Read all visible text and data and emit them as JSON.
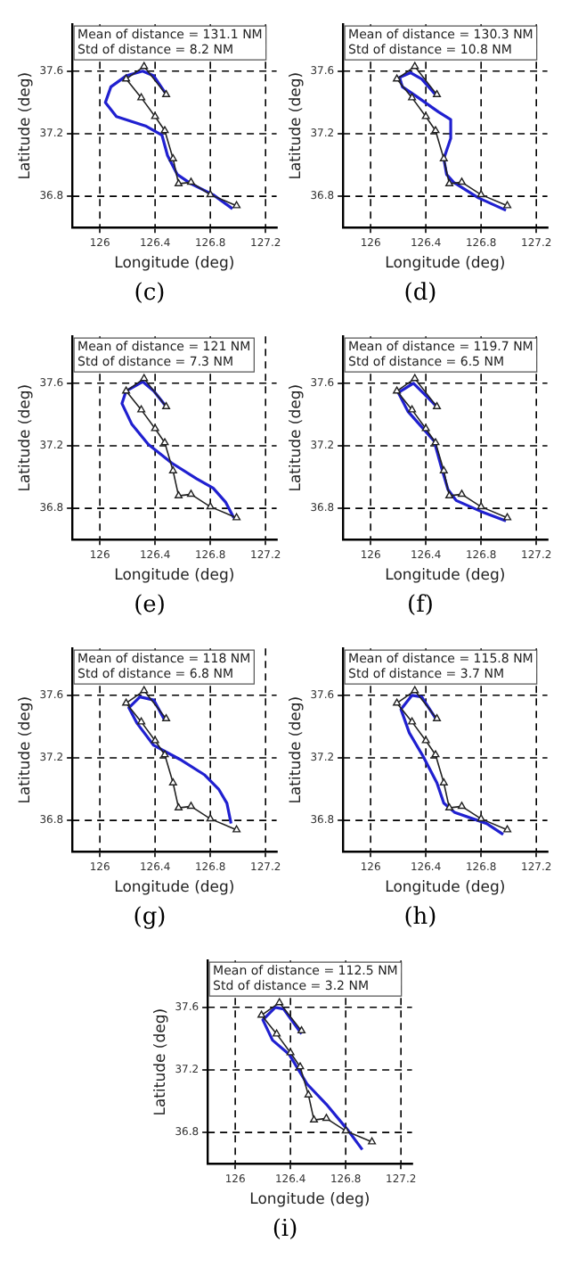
{
  "chart_data": [
    {
      "type": "line",
      "xlabel": "Longitude (deg)",
      "ylabel": "Latitude (deg)",
      "xlim": [
        125.8,
        127.28
      ],
      "ylim": [
        36.6,
        37.9
      ],
      "xticks": [
        126,
        126.4,
        126.8,
        127.2
      ],
      "yticks": [
        36.8,
        37.2,
        37.6
      ],
      "grid": true,
      "annotations": [
        "Mean of distance = 131.1 NM",
        "Std of distance = 8.2 NM",
        "(c)"
      ],
      "series": [
        {
          "color": "#222222",
          "marker": "triangle",
          "x": [
            126.99,
            126.8,
            126.66,
            126.57,
            126.53,
            126.47,
            126.4,
            126.3,
            126.19,
            126.32,
            126.48
          ],
          "values": [
            36.74,
            36.81,
            36.89,
            36.88,
            37.04,
            37.22,
            37.31,
            37.43,
            37.55,
            37.63,
            37.45
          ]
        },
        {
          "color": "#2020d0",
          "marker": "none",
          "x": [
            126.96,
            126.82,
            126.66,
            126.56,
            126.49,
            126.45,
            126.33,
            126.12,
            126.04,
            126.08,
            126.19,
            126.31,
            126.39,
            126.49
          ],
          "values": [
            36.72,
            36.81,
            36.88,
            36.94,
            37.06,
            37.19,
            37.25,
            37.31,
            37.4,
            37.5,
            37.57,
            37.6,
            37.57,
            37.44
          ]
        }
      ]
    },
    {
      "type": "line",
      "xlabel": "Longitude (deg)",
      "ylabel": "Latitude (deg)",
      "xlim": [
        125.8,
        127.28
      ],
      "ylim": [
        36.6,
        37.9
      ],
      "xticks": [
        126,
        126.4,
        126.8,
        127.2
      ],
      "yticks": [
        36.8,
        37.2,
        37.6
      ],
      "grid": true,
      "annotations": [
        "Mean of distance = 130.3 NM",
        "Std of distance = 10.8 NM",
        "(d)"
      ],
      "series": [
        {
          "color": "#222222",
          "marker": "triangle",
          "x": [
            126.99,
            126.8,
            126.66,
            126.57,
            126.53,
            126.47,
            126.4,
            126.3,
            126.19,
            126.32,
            126.48
          ],
          "values": [
            36.74,
            36.81,
            36.89,
            36.88,
            37.04,
            37.22,
            37.31,
            37.43,
            37.55,
            37.63,
            37.45
          ]
        },
        {
          "color": "#2020d0",
          "marker": "none",
          "x": [
            126.98,
            126.78,
            126.6,
            126.55,
            126.53,
            126.58,
            126.58,
            126.49,
            126.33,
            126.23,
            126.21,
            126.29,
            126.37,
            126.47
          ],
          "values": [
            36.71,
            36.79,
            36.89,
            36.94,
            37.04,
            37.17,
            37.29,
            37.34,
            37.44,
            37.5,
            37.56,
            37.59,
            37.55,
            37.45
          ]
        }
      ]
    },
    {
      "type": "line",
      "xlabel": "Longitude (deg)",
      "ylabel": "Latitude (deg)",
      "xlim": [
        125.8,
        127.28
      ],
      "ylim": [
        36.6,
        37.9
      ],
      "xticks": [
        126,
        126.4,
        126.8,
        127.2
      ],
      "yticks": [
        36.8,
        37.2,
        37.6
      ],
      "grid": true,
      "annotations": [
        "Mean of distance = 121 NM",
        "Std of distance = 7.3 NM",
        "(e)"
      ],
      "series": [
        {
          "color": "#222222",
          "marker": "triangle",
          "x": [
            126.99,
            126.8,
            126.66,
            126.57,
            126.53,
            126.47,
            126.4,
            126.3,
            126.19,
            126.32,
            126.48
          ],
          "values": [
            36.74,
            36.81,
            36.89,
            36.88,
            37.04,
            37.22,
            37.31,
            37.43,
            37.55,
            37.63,
            37.45
          ]
        },
        {
          "color": "#2020d0",
          "marker": "none",
          "x": [
            126.97,
            126.91,
            126.82,
            126.7,
            126.52,
            126.35,
            126.23,
            126.16,
            126.19,
            126.31,
            126.39,
            126.49
          ],
          "values": [
            36.74,
            36.84,
            36.93,
            36.99,
            37.09,
            37.21,
            37.34,
            37.47,
            37.55,
            37.61,
            37.55,
            37.44
          ]
        }
      ]
    },
    {
      "type": "line",
      "xlabel": "Longitude (deg)",
      "ylabel": "Latitude (deg)",
      "xlim": [
        125.8,
        127.28
      ],
      "ylim": [
        36.6,
        37.9
      ],
      "xticks": [
        126,
        126.4,
        126.8,
        127.2
      ],
      "yticks": [
        36.8,
        37.2,
        37.6
      ],
      "grid": true,
      "annotations": [
        "Mean of distance = 119.7 NM",
        "Std of distance = 6.5 NM",
        "(f)"
      ],
      "series": [
        {
          "color": "#222222",
          "marker": "triangle",
          "x": [
            126.99,
            126.8,
            126.66,
            126.57,
            126.53,
            126.47,
            126.4,
            126.3,
            126.19,
            126.32,
            126.48
          ],
          "values": [
            36.74,
            36.81,
            36.89,
            36.88,
            37.04,
            37.22,
            37.31,
            37.43,
            37.55,
            37.63,
            37.45
          ]
        },
        {
          "color": "#2020d0",
          "marker": "none",
          "x": [
            126.98,
            126.8,
            126.62,
            126.56,
            126.51,
            126.46,
            126.37,
            126.27,
            126.2,
            126.31,
            126.39,
            126.49
          ],
          "values": [
            36.72,
            36.78,
            36.85,
            36.92,
            37.07,
            37.23,
            37.32,
            37.42,
            37.54,
            37.6,
            37.53,
            37.44
          ]
        }
      ]
    },
    {
      "type": "line",
      "xlabel": "Longitude (deg)",
      "ylabel": "Latitude (deg)",
      "xlim": [
        125.8,
        127.28
      ],
      "ylim": [
        36.6,
        37.9
      ],
      "xticks": [
        126,
        126.4,
        126.8,
        127.2
      ],
      "yticks": [
        36.8,
        37.2,
        37.6
      ],
      "grid": true,
      "annotations": [
        "Mean of distance = 118 NM",
        "Std of distance = 6.8 NM",
        "(g)"
      ],
      "series": [
        {
          "color": "#222222",
          "marker": "triangle",
          "x": [
            126.99,
            126.8,
            126.66,
            126.57,
            126.53,
            126.47,
            126.4,
            126.3,
            126.19,
            126.32,
            126.48
          ],
          "values": [
            36.74,
            36.81,
            36.89,
            36.88,
            37.04,
            37.22,
            37.31,
            37.43,
            37.55,
            37.63,
            37.45
          ]
        },
        {
          "color": "#2020d0",
          "marker": "none",
          "x": [
            126.95,
            126.92,
            126.86,
            126.76,
            126.58,
            126.39,
            126.27,
            126.21,
            126.29,
            126.39,
            126.47
          ],
          "values": [
            36.78,
            36.91,
            37,
            37.09,
            37.19,
            37.28,
            37.42,
            37.52,
            37.59,
            37.57,
            37.44
          ]
        }
      ]
    },
    {
      "type": "line",
      "xlabel": "Longitude (deg)",
      "ylabel": "Latitude (deg)",
      "xlim": [
        125.8,
        127.28
      ],
      "ylim": [
        36.6,
        37.9
      ],
      "xticks": [
        126,
        126.4,
        126.8,
        127.2
      ],
      "yticks": [
        36.8,
        37.2,
        37.6
      ],
      "grid": true,
      "annotations": [
        "Mean of distance = 115.8 NM",
        "Std of distance = 3.7 NM",
        "(h)"
      ],
      "series": [
        {
          "color": "#222222",
          "marker": "triangle",
          "x": [
            126.99,
            126.8,
            126.66,
            126.57,
            126.53,
            126.47,
            126.4,
            126.3,
            126.19,
            126.32,
            126.48
          ],
          "values": [
            36.74,
            36.81,
            36.89,
            36.88,
            37.04,
            37.22,
            37.31,
            37.43,
            37.55,
            37.63,
            37.45
          ]
        },
        {
          "color": "#2020d0",
          "marker": "none",
          "x": [
            126.96,
            126.84,
            126.61,
            126.53,
            126.48,
            126.38,
            126.28,
            126.22,
            126.3,
            126.37,
            126.48
          ],
          "values": [
            36.71,
            36.78,
            36.85,
            36.91,
            37.04,
            37.21,
            37.36,
            37.51,
            37.6,
            37.59,
            37.44
          ]
        }
      ]
    },
    {
      "type": "line",
      "xlabel": "Longitude (deg)",
      "ylabel": "Latitude (deg)",
      "xlim": [
        125.8,
        127.28
      ],
      "ylim": [
        36.6,
        37.9
      ],
      "xticks": [
        126,
        126.4,
        126.8,
        127.2
      ],
      "yticks": [
        36.8,
        37.2,
        37.6
      ],
      "grid": true,
      "annotations": [
        "Mean of distance = 112.5 NM",
        "Std of distance = 3.2 NM",
        "(i)"
      ],
      "series": [
        {
          "color": "#222222",
          "marker": "triangle",
          "x": [
            126.99,
            126.8,
            126.66,
            126.57,
            126.53,
            126.47,
            126.4,
            126.3,
            126.19,
            126.32,
            126.48
          ],
          "values": [
            36.74,
            36.81,
            36.89,
            36.88,
            37.04,
            37.22,
            37.31,
            37.43,
            37.55,
            37.63,
            37.45
          ]
        },
        {
          "color": "#2020d0",
          "marker": "none",
          "x": [
            126.92,
            126.82,
            126.66,
            126.52,
            126.39,
            126.27,
            126.2,
            126.29,
            126.35,
            126.48
          ],
          "values": [
            36.69,
            36.81,
            36.98,
            37.11,
            37.3,
            37.39,
            37.52,
            37.6,
            37.59,
            37.43
          ]
        }
      ]
    }
  ]
}
